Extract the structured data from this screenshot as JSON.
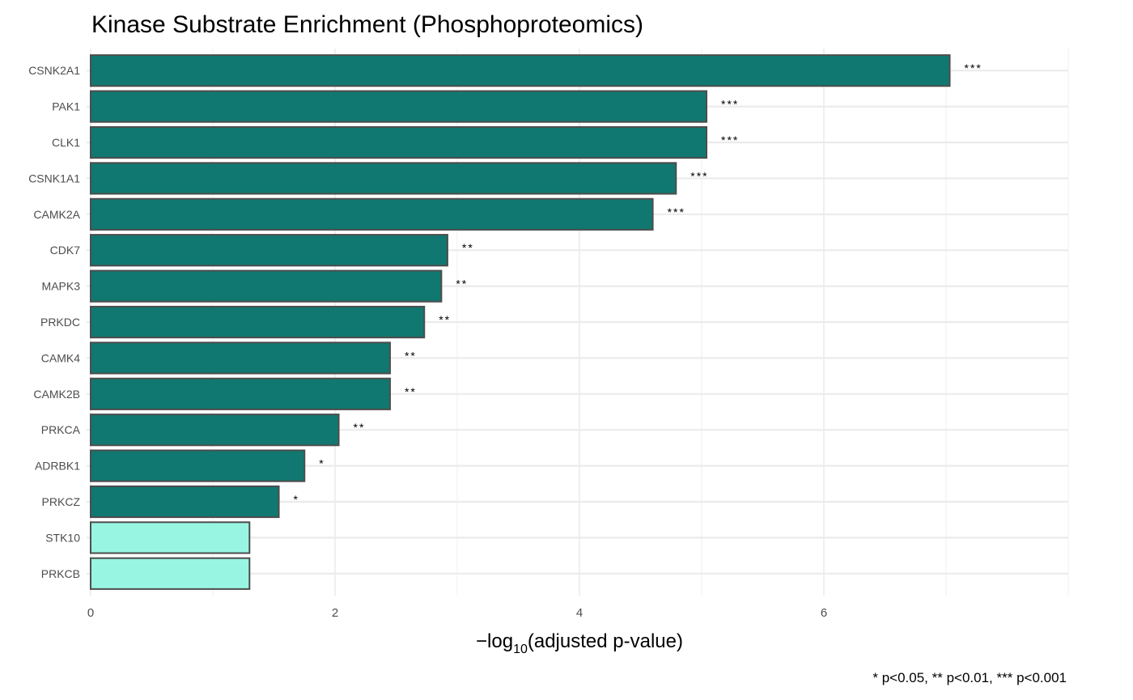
{
  "chart_data": {
    "type": "bar",
    "orientation": "horizontal",
    "title": "Kinase Substrate Enrichment (Phosphoproteomics)",
    "xlabel_prefix": "−log",
    "xlabel_sub": "10",
    "xlabel_rest": "(adjusted p-value)",
    "ylabel": "",
    "caption": "* p<0.05, ** p<0.01, *** p<0.001",
    "xlim": [
      0,
      8
    ],
    "xticks": [
      0,
      2,
      4,
      6
    ],
    "xtick_labels": [
      "0",
      "2",
      "4",
      "6"
    ],
    "grid": true,
    "categories": [
      "CSNK2A1",
      "PAK1",
      "CLK1",
      "CSNK1A1",
      "CAMK2A",
      "CDK7",
      "MAPK3",
      "PRKDC",
      "CAMK4",
      "CAMK2B",
      "PRKCA",
      "ADRBK1",
      "PRKCZ",
      "STK10",
      "PRKCB"
    ],
    "values": [
      7.03,
      5.04,
      5.04,
      4.79,
      4.6,
      2.92,
      2.87,
      2.73,
      2.45,
      2.45,
      2.03,
      1.75,
      1.54,
      1.3,
      1.3
    ],
    "significance": [
      "***",
      "***",
      "***",
      "***",
      "***",
      "**",
      "**",
      "**",
      "**",
      "**",
      "**",
      "*",
      "*",
      "",
      ""
    ],
    "colors": {
      "significant": "#107870",
      "not_significant": "#98F5E2",
      "border": "#4d4d4d",
      "grid": "#ebebeb"
    }
  }
}
